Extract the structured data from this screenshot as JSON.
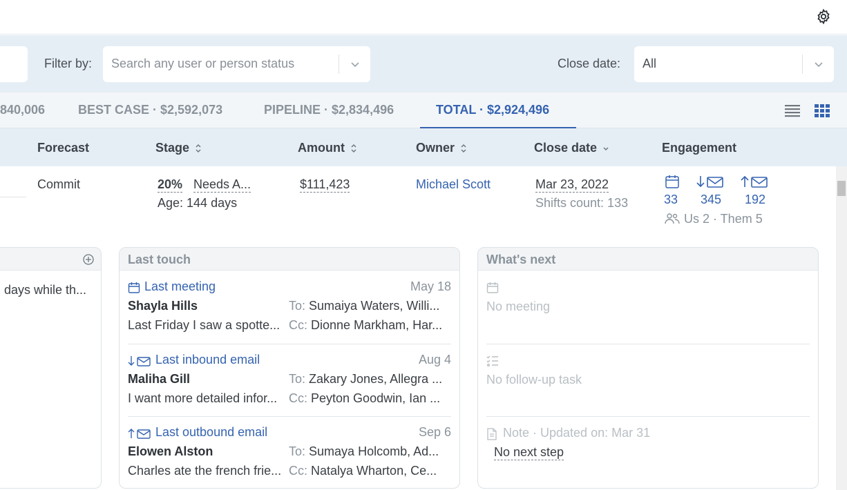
{
  "filters": {
    "filter_label": "Filter by:",
    "filter_placeholder": "Search any user or person status",
    "close_date_label": "Close date:",
    "close_date_value": "All"
  },
  "tabs": [
    {
      "label": "840,006"
    },
    {
      "label": "BEST CASE · $2,592,073"
    },
    {
      "label": "PIPELINE · $2,834,496"
    },
    {
      "label": "TOTAL · $2,924,496",
      "active": true
    }
  ],
  "columns": {
    "forecast": "Forecast",
    "stage": "Stage",
    "amount": "Amount",
    "owner": "Owner",
    "close_date": "Close date",
    "engagement": "Engagement"
  },
  "row": {
    "forecast": "Commit",
    "stage_pct": "20%",
    "stage_name": "Needs A...",
    "age": "Age: 144 days",
    "amount": "$111,423",
    "owner": "Michael Scott",
    "close_date": "Mar 23, 2022",
    "shifts": "Shifts count: 133",
    "eng_meetings": "33",
    "eng_inbound": "345",
    "eng_outbound": "192",
    "people": "Us 2 · Them 5"
  },
  "left_card": {
    "text": "days while th..."
  },
  "last_touch": {
    "title": "Last touch",
    "entries": [
      {
        "type": "Last meeting",
        "date": "May 18",
        "name": "Shayla Hills",
        "to_label": "To:",
        "to": "Sumaiya Waters, Willi...",
        "preview": "Last Friday I saw a spotte...",
        "cc_label": "Cc:",
        "cc": "Dionne Markham, Har..."
      },
      {
        "type": "Last inbound email",
        "date": "Aug 4",
        "name": "Maliha Gill",
        "to_label": "To:",
        "to": "Zakary Jones, Allegra ...",
        "preview": "I want more detailed infor...",
        "cc_label": "Cc:",
        "cc": "Peyton Goodwin, Ian ..."
      },
      {
        "type": "Last outbound email",
        "date": "Sep 6",
        "name": "Elowen Alston",
        "to_label": "To:",
        "to": "Sumaya Holcomb, Ad...",
        "preview": "Charles ate the french frie...",
        "cc_label": "Cc:",
        "cc": "Natalya Wharton, Ce..."
      }
    ]
  },
  "whats_next": {
    "title": "What's next",
    "no_meeting": "No meeting",
    "no_task": "No follow-up task",
    "note": "Note · Updated on: Mar 31",
    "next_step": "No next step"
  },
  "colors": {
    "accent": "#3563b0",
    "filter_bg": "#e6eef5",
    "muted": "#8a939b"
  },
  "icons": [
    "gear-icon",
    "chevron-down-icon",
    "list-view-icon",
    "grid-view-icon",
    "sort-icon",
    "calendar-icon",
    "inbound-email-icon",
    "outbound-email-icon",
    "people-icon",
    "add-circle-icon",
    "checklist-icon",
    "note-icon"
  ]
}
